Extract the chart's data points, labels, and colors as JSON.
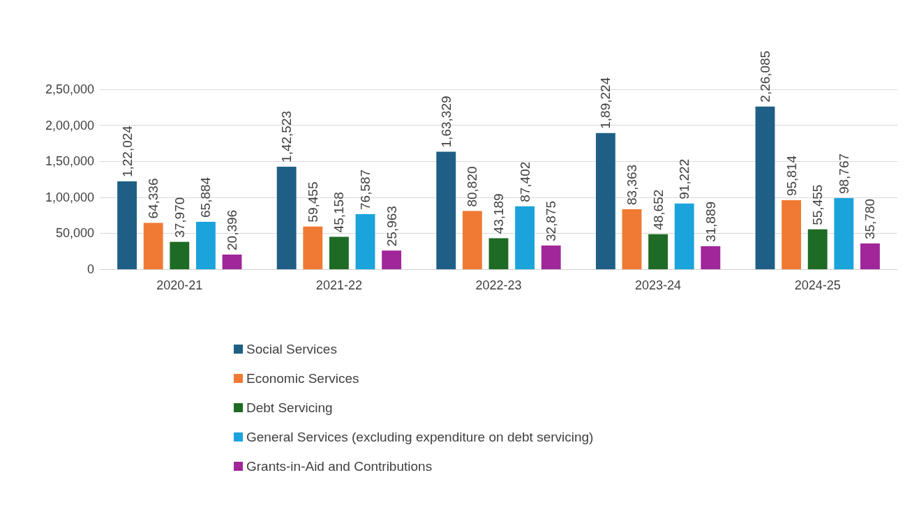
{
  "chart_data": {
    "type": "bar",
    "categories": [
      "2020-21",
      "2021-22",
      "2022-23",
      "2023-24",
      "2024-25"
    ],
    "series": [
      {
        "name": "Social Services",
        "color": "#1f5f85",
        "values": [
          122024,
          142523,
          163329,
          189224,
          226085
        ],
        "value_labels": [
          "1,22,024",
          "1,42,523",
          "1,63,329",
          "1,89,224",
          "2,26,085"
        ]
      },
      {
        "name": "Economic Services",
        "color": "#f07a33",
        "values": [
          64336,
          59455,
          80820,
          83363,
          95814
        ],
        "value_labels": [
          "64,336",
          "59,455",
          "80,820",
          "83,363",
          "95,814"
        ]
      },
      {
        "name": "Debt Servicing",
        "color": "#1e6b25",
        "values": [
          37970,
          45158,
          43189,
          48652,
          55455
        ],
        "value_labels": [
          "37,970",
          "45,158",
          "43,189",
          "48,652",
          "55,455"
        ]
      },
      {
        "name": "General Services (excluding expenditure on debt servicing)",
        "color": "#1ba3dc",
        "values": [
          65884,
          76587,
          87402,
          91222,
          98767
        ],
        "value_labels": [
          "65,884",
          "76,587",
          "87,402",
          "91,222",
          "98,767"
        ]
      },
      {
        "name": "Grants-in-Aid and Contributions",
        "color": "#a0269a",
        "values": [
          20396,
          25963,
          32875,
          31889,
          35780
        ],
        "value_labels": [
          "20,396",
          "25,963",
          "32,875",
          "31,889",
          "35,780"
        ]
      }
    ],
    "ylim": [
      0,
      250000
    ],
    "yticks": [
      0,
      {
        "value": 50000,
        "label": "50,000"
      },
      {
        "value": 100000,
        "label": "1,00,000"
      },
      {
        "value": 150000,
        "label": "1,50,000"
      },
      {
        "value": 200000,
        "label": "2,00,000"
      },
      {
        "value": 250000,
        "label": "2,50,000"
      }
    ],
    "grid": "y",
    "legend": "bottom"
  }
}
